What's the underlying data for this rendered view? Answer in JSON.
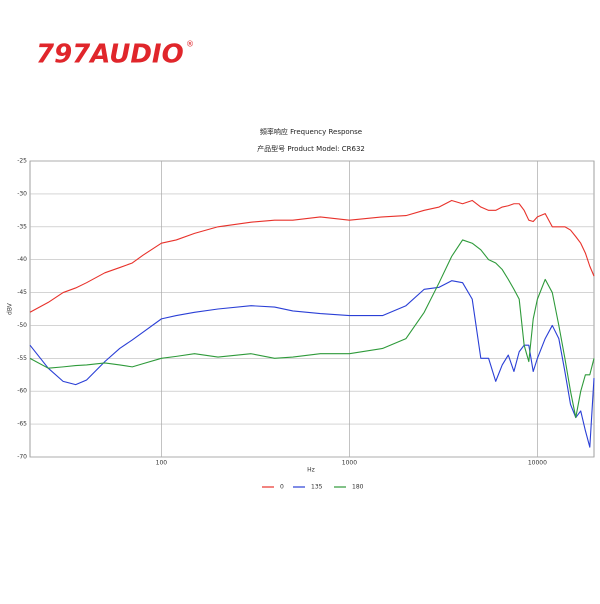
{
  "logo": {
    "text": "797AUDIO",
    "mark": "®"
  },
  "chart_data": {
    "type": "line",
    "title": "頻率响应 Frequency Response",
    "subtitle": "产品型号 Product Model: CR632",
    "x_label": "Hz",
    "y_label": "dBV",
    "xscale": "log",
    "grid": true,
    "legend": "bottom",
    "xlim": [
      20,
      20000
    ],
    "xticks": [
      100,
      1000,
      10000
    ],
    "ylim": [
      -70,
      -25
    ],
    "yticks": [
      -70,
      -65,
      -60,
      -55,
      -50,
      -45,
      -40,
      -35,
      -30,
      -25
    ],
    "x": [
      20,
      25,
      30,
      35,
      40,
      50,
      60,
      70,
      80,
      100,
      120,
      150,
      200,
      300,
      400,
      500,
      700,
      1000,
      1500,
      2000,
      2500,
      3000,
      3500,
      4000,
      4500,
      5000,
      5500,
      6000,
      6500,
      7000,
      7500,
      8000,
      8500,
      9000,
      9500,
      10000,
      11000,
      12000,
      13000,
      14000,
      15000,
      16000,
      17000,
      18000,
      19000,
      20000
    ],
    "series": [
      {
        "name": "0",
        "color": "#e8322b",
        "values": [
          -48,
          -46.5,
          -45,
          -44.3,
          -43.5,
          -42,
          -41.2,
          -40.5,
          -39.3,
          -37.5,
          -37,
          -36,
          -35,
          -34.3,
          -34,
          -34,
          -33.5,
          -34,
          -33.5,
          -33.3,
          -32.5,
          -32,
          -31,
          -31.5,
          -31,
          -32,
          -32.5,
          -32.5,
          -32,
          -31.8,
          -31.5,
          -31.5,
          -32.5,
          -34,
          -34.2,
          -33.5,
          -33,
          -35,
          -35,
          -35,
          -35.5,
          -36.5,
          -37.5,
          -39,
          -41,
          -42.5
        ]
      },
      {
        "name": "135",
        "color": "#2a3fd6",
        "values": [
          -53,
          -56.5,
          -58.5,
          -59,
          -58.3,
          -55.5,
          -53.5,
          -52.2,
          -51,
          -49,
          -48.5,
          -48,
          -47.5,
          -47,
          -47.2,
          -47.8,
          -48.2,
          -48.5,
          -48.5,
          -47,
          -44.5,
          -44.2,
          -43.2,
          -43.5,
          -46,
          -55,
          -55,
          -58.5,
          -56,
          -54.5,
          -57,
          -54,
          -53,
          -53,
          -57,
          -55,
          -52,
          -50,
          -52,
          -57,
          -62,
          -64,
          -63,
          -66,
          -68.5,
          -58
        ]
      },
      {
        "name": "180",
        "color": "#2e9a3a",
        "values": [
          -55,
          -56.5,
          -56.3,
          -56.1,
          -56,
          -55.7,
          -56,
          -56.3,
          -55.8,
          -55,
          -54.7,
          -54.3,
          -54.8,
          -54.3,
          -55,
          -54.8,
          -54.3,
          -54.3,
          -53.5,
          -52,
          -48,
          -43.5,
          -39.5,
          -37,
          -37.5,
          -38.5,
          -40,
          -40.5,
          -41.5,
          -43,
          -44.5,
          -46,
          -53,
          -55.5,
          -49,
          -46,
          -43,
          -45,
          -50,
          -55,
          -60,
          -64,
          -60,
          -57.5,
          -57.5,
          -55
        ]
      }
    ]
  }
}
